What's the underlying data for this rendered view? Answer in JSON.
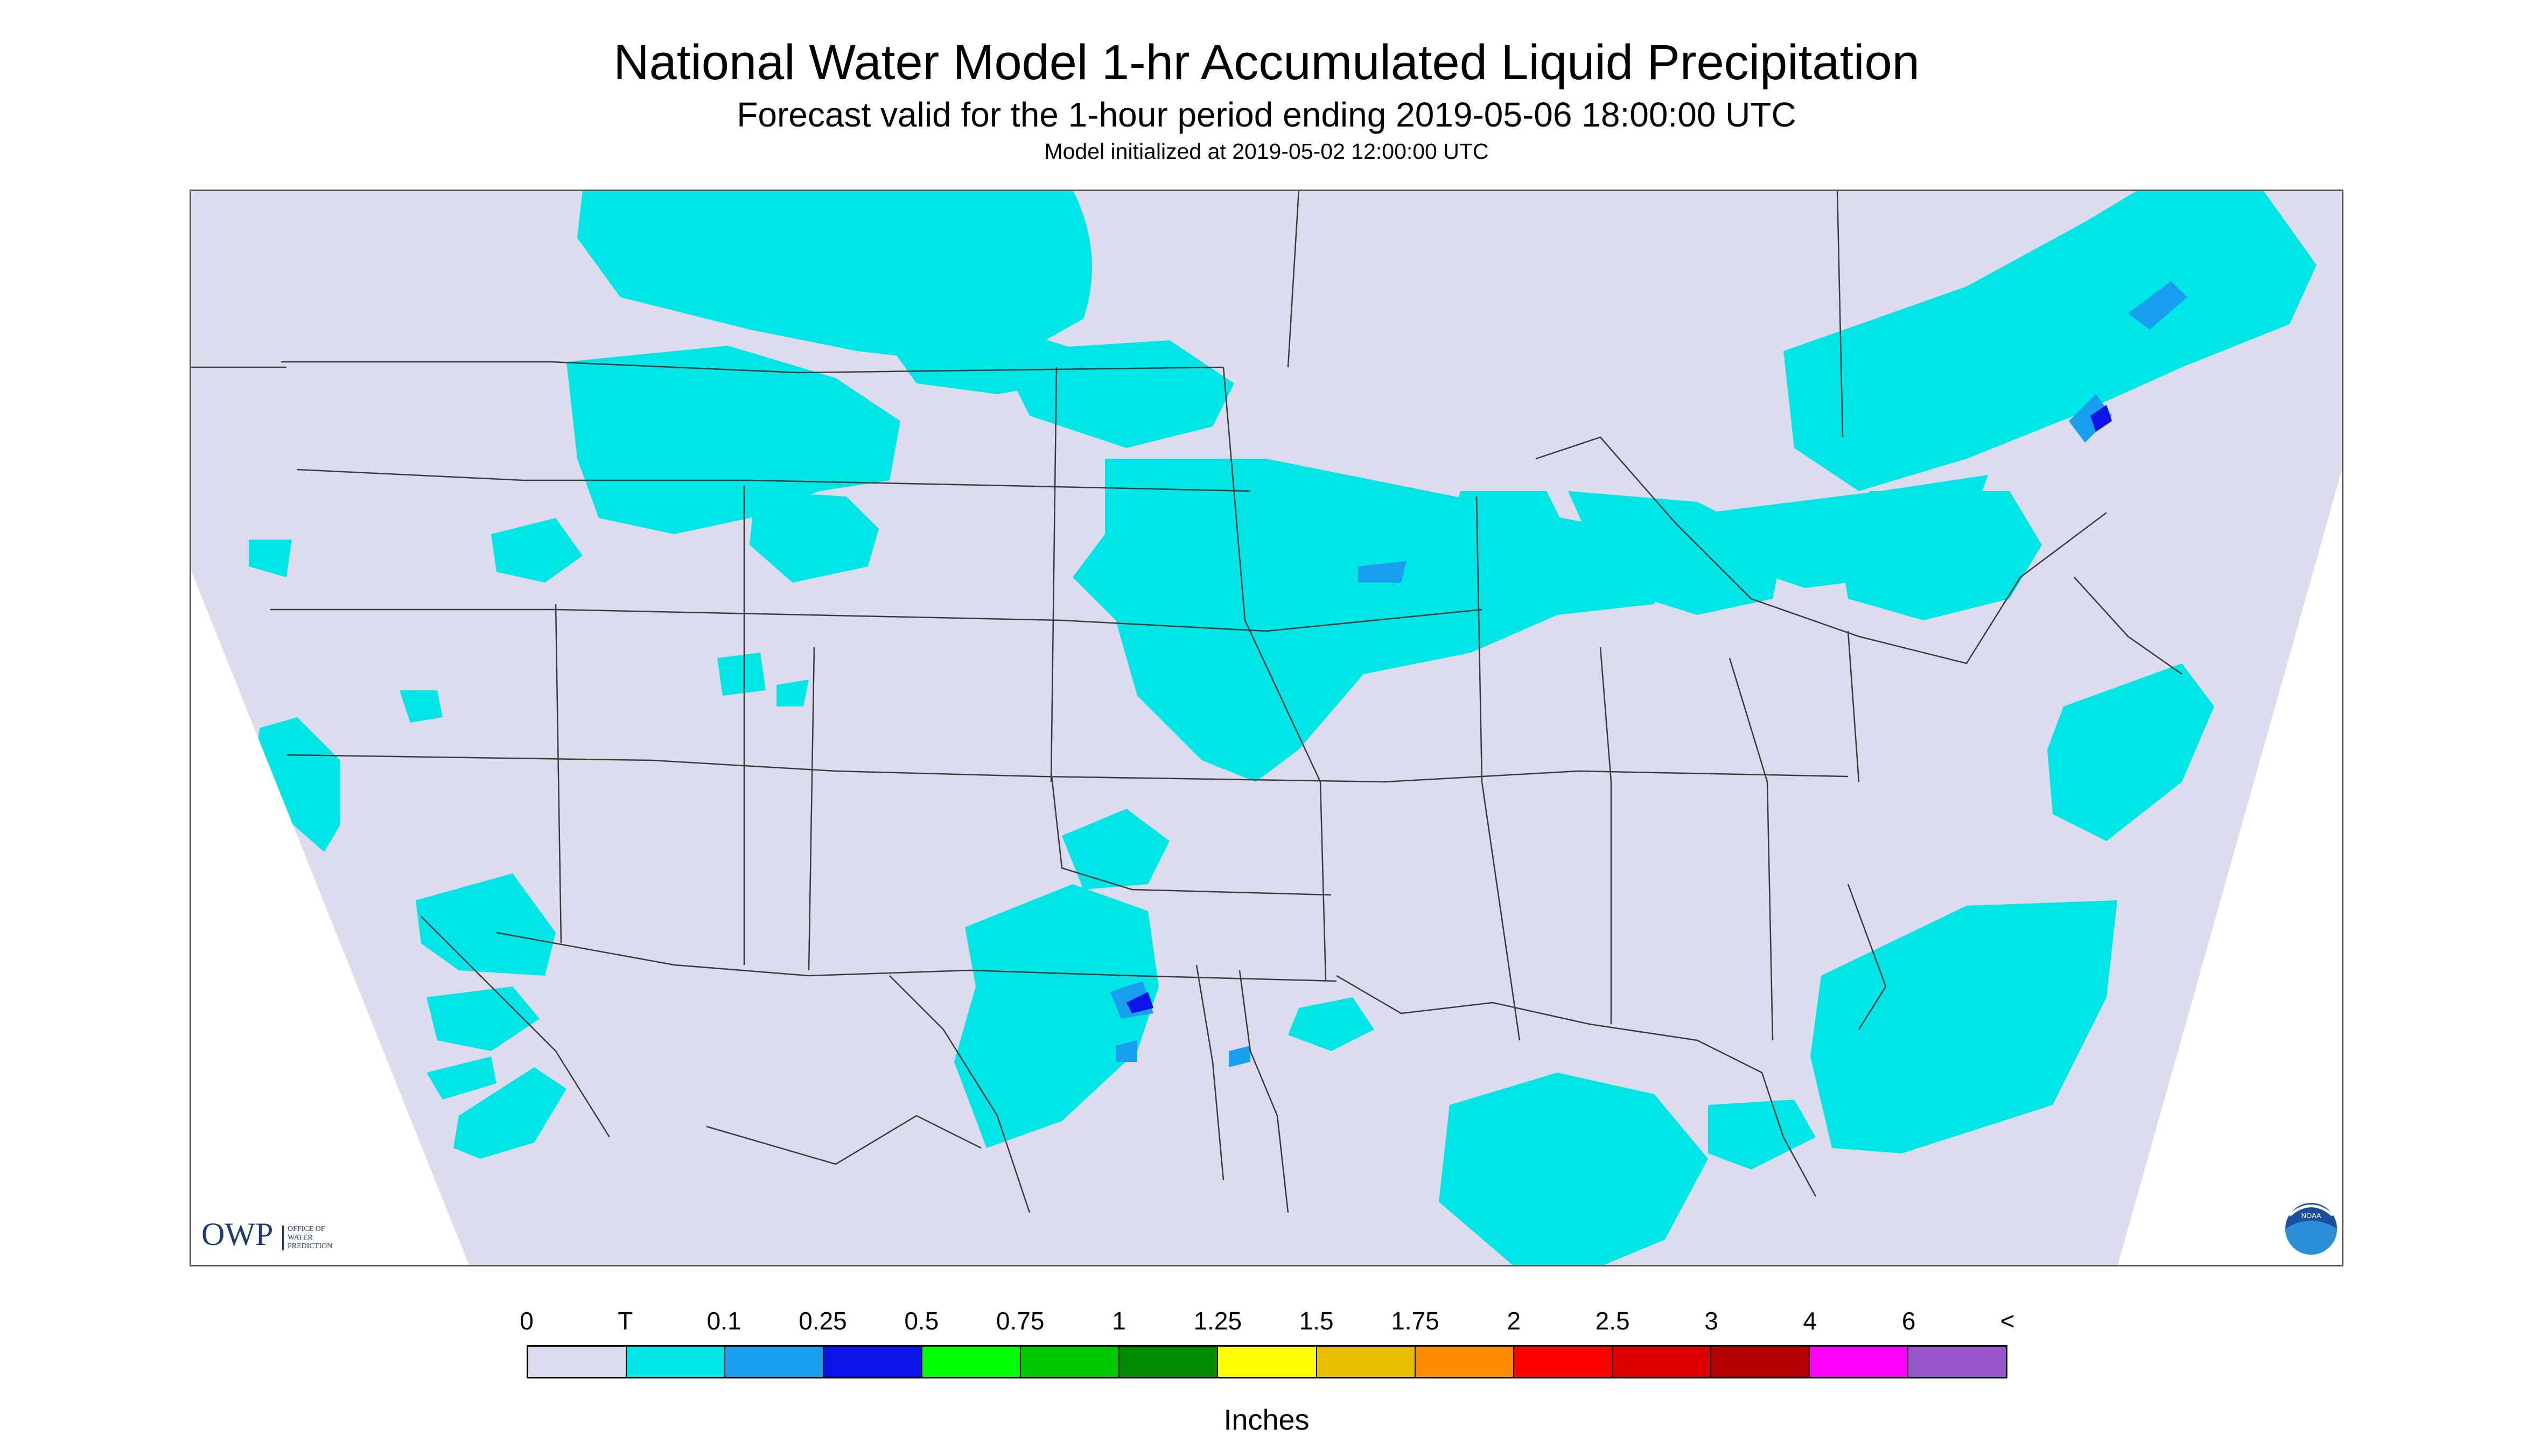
{
  "header": {
    "title": "National Water Model 1-hr Accumulated Liquid Precipitation",
    "subtitle": "Forecast valid for the 1-hour period ending 2019-05-06 18:00:00 UTC",
    "init": "Model initialized at 2019-05-02 12:00:00 UTC"
  },
  "map": {
    "background_color": "#dcdcee",
    "light_rain_color": "#00e5e5",
    "moderate_rain_color": "#199ff0",
    "heavy_rain_color": "#0a14e6",
    "owp_logo": {
      "abbr": "OWP",
      "line1": "OFFICE OF",
      "line2": "WATER",
      "line3": "PREDICTION"
    },
    "noaa_logo": {
      "text": "NOAA"
    }
  },
  "legend": {
    "labels": [
      "0",
      "T",
      "0.1",
      "0.25",
      "0.5",
      "0.75",
      "1",
      "1.25",
      "1.5",
      "1.75",
      "2",
      "2.5",
      "3",
      "4",
      "6",
      "<"
    ],
    "colors": [
      "#dcdcee",
      "#00e5e5",
      "#199ff0",
      "#0a14e6",
      "#00ff00",
      "#00c800",
      "#008c00",
      "#ffff00",
      "#e6be00",
      "#ff8c00",
      "#ff0000",
      "#dc0000",
      "#b40000",
      "#ff00ff",
      "#9655c8"
    ],
    "units": "Inches"
  }
}
